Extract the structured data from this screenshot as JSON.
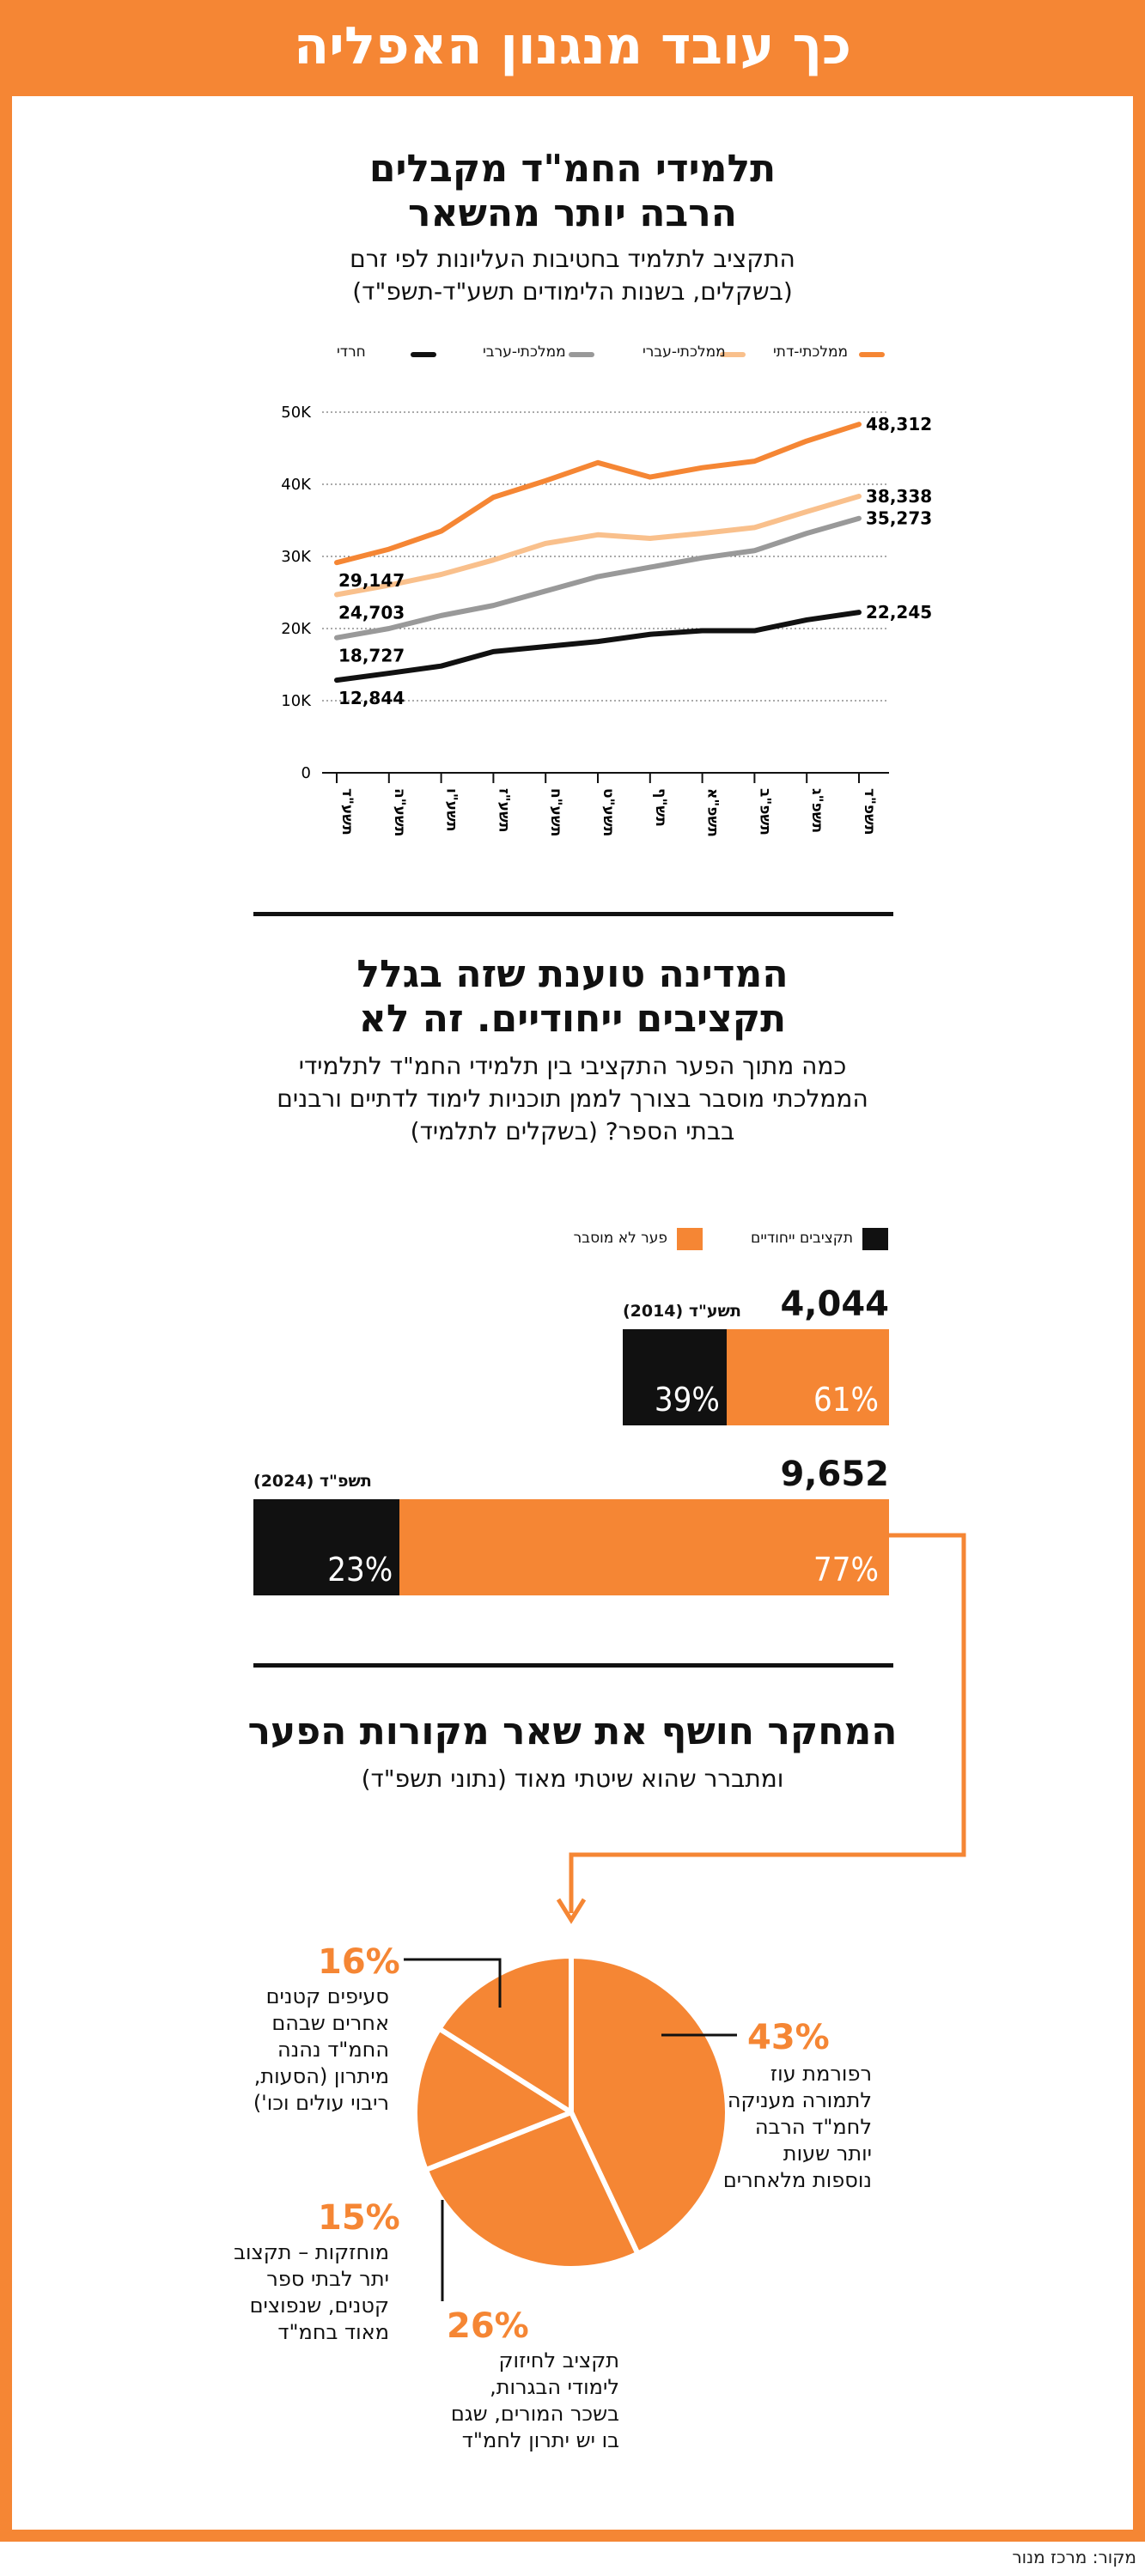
{
  "header": {
    "title": "כך עובד מנגנון האפליה"
  },
  "section1": {
    "title_line1": "תלמידי החמ\"ד מקבלים",
    "title_line2": "הרבה יותר מהשאר",
    "subtitle_line1": "התקציב לתלמיד בחטיבות העליונות לפי זרם",
    "subtitle_line2": "(בשקלים, בשנות הלימודים תשע\"ד-תשפ\"ד)"
  },
  "section2": {
    "title_line1": "המדינה טוענת שזה בגלל",
    "title_line2": "תקציבים ייחודיים. זה לא",
    "subtitle_line1": "כמה מתוך הפער התקציבי בין תלמידי החמ\"ד לתלמידי",
    "subtitle_line2": "הממלכתי מוסבר בצורך לממן תוכניות לימוד לדתיים ורבנים",
    "subtitle_line3": "בבתי הספר? (בשקלים לתלמיד)"
  },
  "section3": {
    "title": "המחקר חושף את שאר מקורות הפער",
    "subtitle": "ומתברר שהוא שיטתי מאוד (נתוני תשפ\"ד)"
  },
  "source": "מקור: מרכז מנור",
  "colors": {
    "orange": "#f58634",
    "light_orange": "#f9c08c",
    "gray": "#999999",
    "black": "#111111"
  },
  "chart_data": [
    {
      "type": "line",
      "x": [
        "תשע\"ד",
        "תשע\"ה",
        "תשע\"ו",
        "תשע\"ז",
        "תשע\"ח",
        "תשע\"ט",
        "תש\"ף",
        "תשפ\"א",
        "תשפ\"ב",
        "תשפ\"ג",
        "תשפ\"ד"
      ],
      "yticks": [
        "0",
        "10K",
        "20K",
        "30K",
        "40K",
        "50K"
      ],
      "ylim": [
        0,
        50000
      ],
      "grid": true,
      "legend_position": "top",
      "series": [
        {
          "name": "ממלכתי-דתי",
          "color": "#f58634",
          "values": [
            29147,
            31000,
            33500,
            38200,
            40500,
            43000,
            41000,
            42300,
            43200,
            46000,
            48312
          ],
          "start_label": "29,147",
          "end_label": "48,312"
        },
        {
          "name": "ממלכתי-עברי",
          "color": "#f9c08c",
          "values": [
            24703,
            26000,
            27500,
            29500,
            31800,
            33000,
            32500,
            33200,
            34000,
            36200,
            38338
          ],
          "start_label": "24,703",
          "end_label": "38,338"
        },
        {
          "name": "ממלכתי-ערבי",
          "color": "#999999",
          "values": [
            18727,
            20000,
            21800,
            23200,
            25200,
            27200,
            28500,
            29800,
            30800,
            33200,
            35273
          ],
          "start_label": "18,727",
          "end_label": "35,273"
        },
        {
          "name": "חרדי",
          "color": "#111111",
          "values": [
            12844,
            13800,
            14800,
            16800,
            17500,
            18200,
            19200,
            19700,
            19700,
            21200,
            22245
          ],
          "start_label": "12,844",
          "end_label": "22,245"
        }
      ]
    },
    {
      "type": "bar",
      "legend": [
        "תקציבים ייחודיים",
        "פער לא מוסבר"
      ],
      "bars": [
        {
          "label": "תשע\"ד (2014)",
          "total": 4044,
          "total_label": "4,044",
          "special_pct": 39,
          "unexplained_pct": 61,
          "special_label": "39%",
          "unexplained_label": "61%"
        },
        {
          "label": "תשפ\"ד (2024)",
          "total": 9652,
          "total_label": "9,652",
          "special_pct": 23,
          "unexplained_pct": 77,
          "special_label": "23%",
          "unexplained_label": "77%"
        }
      ]
    },
    {
      "type": "pie",
      "slices": [
        {
          "pct": 43,
          "label": "43%",
          "text": "רפורמת עוז\nלתמורה מעניקה\nלחמ\"ד הרבה\nיותר שעות\nנוספות מלאחרים"
        },
        {
          "pct": 26,
          "label": "26%",
          "text": "תקציב לחיזוק\nלימודי הבגרות,\nבשכר המורים, שגם\nבו יש יתרון לחמ\"ד"
        },
        {
          "pct": 15,
          "label": "15%",
          "text": "מוחזקות – תקצוב\nיתר לבתי ספר\nקטנים, שנפוצים\nמאוד בחמ\"ד"
        },
        {
          "pct": 16,
          "label": "16%",
          "text": "סעיפים קטנים\nאחרים שבהם\nהחמ\"ד נהנה\nמיתרון (הסעות,\nריבוי עולים וכו')"
        }
      ]
    }
  ]
}
